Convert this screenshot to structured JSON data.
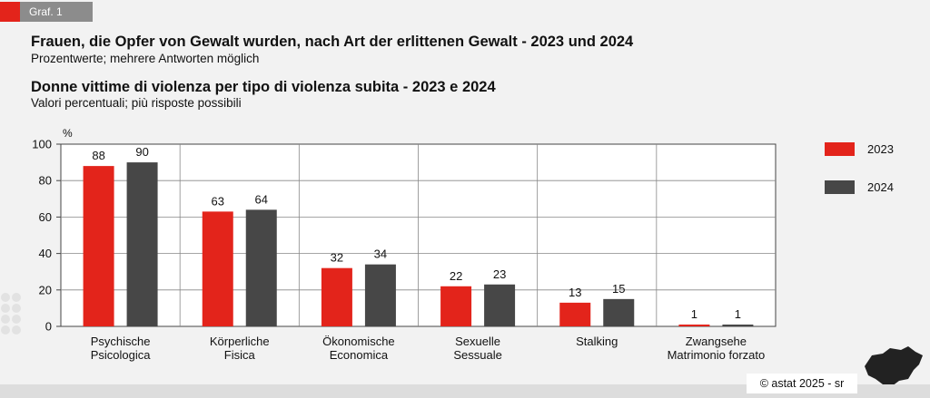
{
  "tag": "Graf. 1",
  "title_de": "Frauen, die Opfer von Gewalt wurden, nach Art der erlittenen Gewalt - 2023 und 2024",
  "subtitle_de": "Prozentwerte; mehrere Antworten möglich",
  "title_it": "Donne vittime di violenza per tipo di violenza subita - 2023 e 2024",
  "subtitle_it": "Valori percentuali; più risposte possibili",
  "copyright": "© astat 2025 - sr",
  "logo_text": "astat",
  "colors": {
    "s2023": "#e3241b",
    "s2024": "#474747"
  },
  "chart_data": {
    "type": "bar",
    "ylabel": "%",
    "ylim": [
      0,
      100
    ],
    "yticks": [
      0,
      20,
      40,
      60,
      80,
      100
    ],
    "grid": true,
    "legend": "right",
    "categories": [
      [
        "Psychische",
        "Psicologica"
      ],
      [
        "Körperliche",
        "Fisica"
      ],
      [
        "Ökonomische",
        "Economica"
      ],
      [
        "Sexuelle",
        "Sessuale"
      ],
      [
        "Stalking"
      ],
      [
        "Zwangsehe",
        "Matrimonio forzato"
      ]
    ],
    "series": [
      {
        "name": "2023",
        "values": [
          88,
          63,
          32,
          22,
          13,
          1
        ]
      },
      {
        "name": "2024",
        "values": [
          90,
          64,
          34,
          23,
          15,
          1
        ]
      }
    ]
  }
}
